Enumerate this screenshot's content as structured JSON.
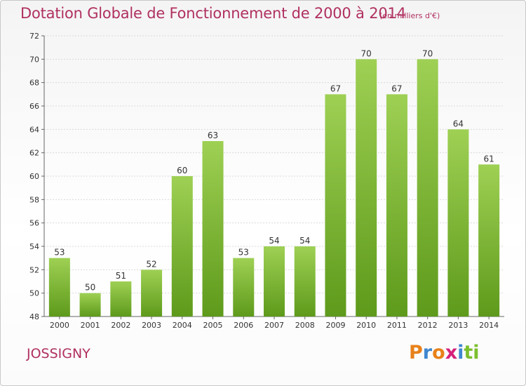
{
  "header": {
    "title": "Dotation Globale de Fonctionnement de 2000 à 2014",
    "unit": "(en milliers d'€)"
  },
  "footer": {
    "place": "JOSSIGNY",
    "logo": [
      "P",
      "r",
      "o",
      "x",
      "i",
      "t",
      "i"
    ]
  },
  "colors": {
    "bar_top": "#9ed054",
    "bar_bottom": "#5e9a1b",
    "title": "#b03060",
    "logo": [
      "#e8811a",
      "#3f87d0",
      "#e8811a",
      "#d6217a",
      "#3f87d0",
      "#7cbf2e",
      "#7cbf2e"
    ]
  },
  "chart_data": {
    "type": "bar",
    "title": "Dotation Globale de Fonctionnement de 2000 à 2014",
    "categories": [
      "2000",
      "2001",
      "2002",
      "2003",
      "2004",
      "2005",
      "2006",
      "2007",
      "2008",
      "2009",
      "2010",
      "2011",
      "2012",
      "2013",
      "2014"
    ],
    "values": [
      53,
      50,
      51,
      52,
      60,
      63,
      53,
      54,
      54,
      67,
      70,
      67,
      70,
      64,
      61
    ],
    "ylim": [
      48,
      72
    ],
    "yticks": [
      48,
      50,
      52,
      54,
      56,
      58,
      60,
      62,
      64,
      66,
      68,
      70,
      72
    ],
    "grid": true,
    "xlabel": "",
    "ylabel": ""
  }
}
